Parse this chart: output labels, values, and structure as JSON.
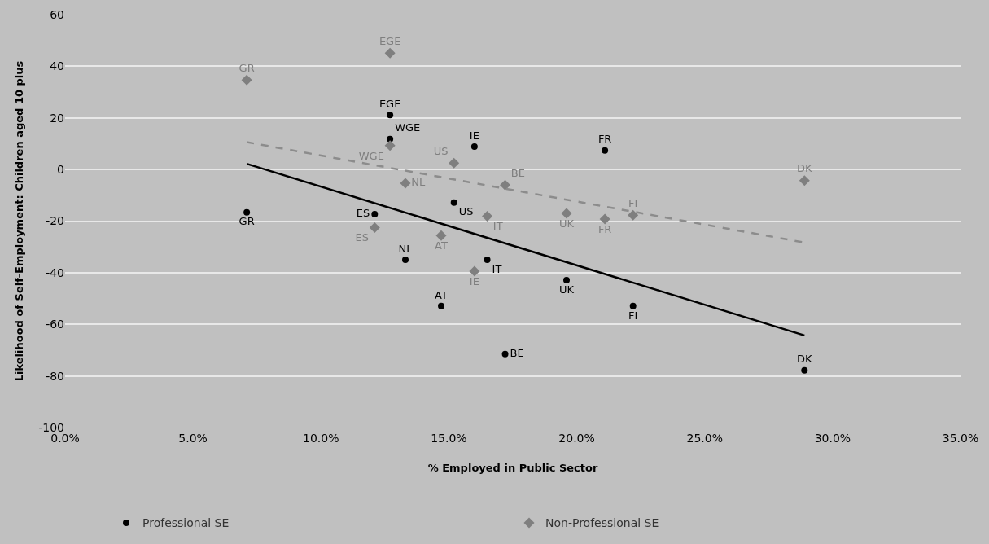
{
  "chart_data": {
    "type": "scatter",
    "xlabel": "% Employed in Public Sector",
    "ylabel": "Likelihood of Self-Employment: Children aged 10 plus",
    "xlim": [
      0,
      35
    ],
    "xticks": [
      {
        "value": 0,
        "label": "0.0%"
      },
      {
        "value": 5,
        "label": "5.0%"
      },
      {
        "value": 10,
        "label": "10.0%"
      },
      {
        "value": 15,
        "label": "15.0%"
      },
      {
        "value": 20,
        "label": "20.0%"
      },
      {
        "value": 25,
        "label": "25.0%"
      },
      {
        "value": 30,
        "label": "30.0%"
      },
      {
        "value": 35,
        "label": "35.0%"
      }
    ],
    "ylim": [
      -100,
      60
    ],
    "yticks": [
      -100,
      -80,
      -60,
      -40,
      -20,
      0,
      20,
      40,
      60
    ],
    "grid": "y",
    "legend": "bottom",
    "series": [
      {
        "name": "Professional SE",
        "color": "#000000",
        "marker": "circle",
        "x": [
          7.1,
          12.7,
          12.7,
          16.0,
          21.1,
          15.2,
          12.1,
          13.3,
          16.5,
          19.6,
          14.7,
          22.2,
          17.2,
          28.9
        ],
        "values": [
          -16.6,
          21.1,
          11.8,
          8.9,
          7.4,
          -12.8,
          -17.3,
          -35.0,
          -35.0,
          -42.9,
          -52.9,
          -52.9,
          -71.5,
          -77.8
        ],
        "value_labels": [
          "GR",
          "EGE",
          "WGE",
          "IE",
          "FR",
          "US",
          "ES",
          "NL",
          "IT",
          "UK",
          "AT",
          "FI",
          "BE",
          "DK"
        ]
      },
      {
        "name": "Non-Professional SE",
        "color": "#7f7f7f",
        "marker": "diamond",
        "x": [
          7.1,
          12.7,
          12.7,
          13.3,
          15.2,
          17.2,
          16.5,
          14.7,
          16.0,
          19.6,
          21.1,
          22.2,
          28.9,
          12.1
        ],
        "values": [
          34.7,
          45.1,
          9.3,
          -5.3,
          2.5,
          -6.0,
          -18.1,
          -25.6,
          -39.4,
          -17.0,
          -19.2,
          -17.7,
          -4.3,
          -22.5
        ],
        "value_labels": [
          "GR",
          "EGE",
          "WGE",
          "NL",
          "US",
          "BE",
          "IT",
          "AT",
          "IE",
          "UK",
          "FR",
          "FI",
          "DK",
          "ES"
        ]
      },
      {
        "type": "line",
        "color": "#000000",
        "line_style": "solid",
        "marker": "none",
        "x": [
          7.1,
          28.9
        ],
        "values": [
          2.2,
          -64.3
        ]
      },
      {
        "type": "line",
        "color": "#8c8c8c",
        "line_style": "dashed",
        "marker": "none",
        "x": [
          7.1,
          28.9
        ],
        "values": [
          10.6,
          -28.3
        ]
      }
    ]
  }
}
